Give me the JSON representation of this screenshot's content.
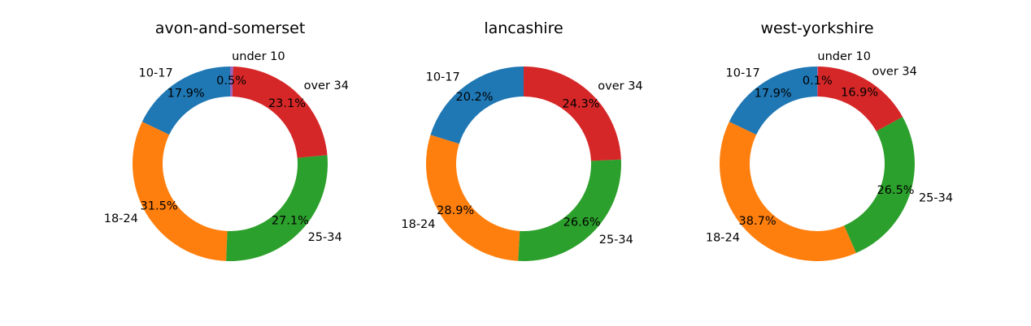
{
  "chart_data": [
    {
      "type": "pie",
      "style": "donut",
      "title": "avon-and-somerset",
      "categories": [
        "10-17",
        "18-24",
        "25-34",
        "over 34",
        "under 10"
      ],
      "values": [
        17.9,
        31.5,
        27.1,
        23.1,
        0.5
      ],
      "percent_labels": [
        "17.9%",
        "31.5%",
        "27.1%",
        "23.1%",
        "0.5%"
      ],
      "colors": [
        "#1f77b4",
        "#ff7f0e",
        "#2ca02c",
        "#d62728",
        "#9467bd"
      ]
    },
    {
      "type": "pie",
      "style": "donut",
      "title": "lancashire",
      "categories": [
        "10-17",
        "18-24",
        "25-34",
        "over 34"
      ],
      "values": [
        20.2,
        28.9,
        26.6,
        24.3
      ],
      "percent_labels": [
        "20.2%",
        "28.9%",
        "26.6%",
        "24.3%"
      ],
      "colors": [
        "#1f77b4",
        "#ff7f0e",
        "#2ca02c",
        "#d62728"
      ]
    },
    {
      "type": "pie",
      "style": "donut",
      "title": "west-yorkshire",
      "categories": [
        "10-17",
        "18-24",
        "25-34",
        "over 34",
        "under 10"
      ],
      "values": [
        17.9,
        38.7,
        26.5,
        16.9,
        0.1
      ],
      "percent_labels": [
        "17.9%",
        "38.7%",
        "26.5%",
        "16.9%",
        "0.1%"
      ],
      "colors": [
        "#1f77b4",
        "#ff7f0e",
        "#2ca02c",
        "#d62728",
        "#9467bd"
      ]
    }
  ]
}
